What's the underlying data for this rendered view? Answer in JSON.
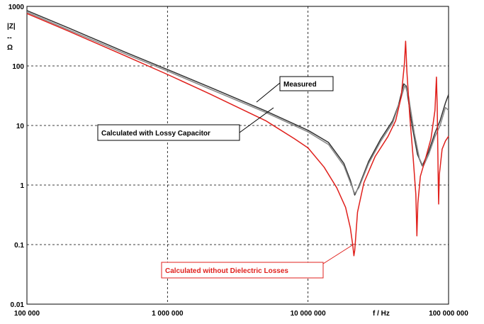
{
  "chart_data": {
    "type": "line",
    "title": "",
    "xscale": "log",
    "yscale": "log",
    "xlim": [
      100000,
      100000000
    ],
    "ylim": [
      0.01,
      1000
    ],
    "x_ticks": [
      {
        "value": 100000,
        "label": "100 000"
      },
      {
        "value": 1000000,
        "label": "1 000 000"
      },
      {
        "value": 10000000,
        "label": "10 000 000"
      },
      {
        "value": 100000000,
        "label": "100 000 000"
      }
    ],
    "y_ticks": [
      {
        "value": 1000,
        "label": "1000"
      },
      {
        "value": 100,
        "label": "100"
      },
      {
        "value": 10,
        "label": "10"
      },
      {
        "value": 1,
        "label": "1"
      },
      {
        "value": 0.1,
        "label": "0.1"
      },
      {
        "value": 0.01,
        "label": "0.01"
      }
    ],
    "xlabel": "f / Hz",
    "ylabel_top": "|Z|",
    "ylabel_sep": "--",
    "ylabel_bottom": "Ω",
    "grid": true,
    "series": [
      {
        "name": "Measured",
        "color": "#333333",
        "points": [
          [
            100000,
            850
          ],
          [
            200000,
            430
          ],
          [
            500000,
            170
          ],
          [
            1000000,
            87
          ],
          [
            2000000,
            44
          ],
          [
            5000000,
            17.5
          ],
          [
            10000000,
            8.3
          ],
          [
            14000000,
            5.2
          ],
          [
            18000000,
            2.3
          ],
          [
            20000000,
            1.2
          ],
          [
            21500000,
            0.68
          ],
          [
            23000000,
            0.95
          ],
          [
            27000000,
            2.5
          ],
          [
            33000000,
            6
          ],
          [
            40000000,
            12
          ],
          [
            44000000,
            22
          ],
          [
            48000000,
            50
          ],
          [
            50000000,
            46
          ],
          [
            55000000,
            10
          ],
          [
            60000000,
            3.3
          ],
          [
            65000000,
            2.1
          ],
          [
            72000000,
            3.6
          ],
          [
            80000000,
            7.5
          ],
          [
            87000000,
            12
          ],
          [
            95000000,
            24
          ],
          [
            100000000,
            33
          ]
        ]
      },
      {
        "name": "Calculated with Lossy Capacitor",
        "color": "#888888",
        "points": [
          [
            100000,
            800
          ],
          [
            200000,
            400
          ],
          [
            500000,
            160
          ],
          [
            1000000,
            82
          ],
          [
            2000000,
            41
          ],
          [
            5000000,
            16.5
          ],
          [
            10000000,
            7.8
          ],
          [
            14000000,
            4.8
          ],
          [
            18000000,
            2.1
          ],
          [
            20000000,
            1.1
          ],
          [
            21500000,
            0.72
          ],
          [
            23000000,
            0.9
          ],
          [
            27000000,
            2.3
          ],
          [
            33000000,
            5.5
          ],
          [
            40000000,
            11
          ],
          [
            45000000,
            25
          ],
          [
            49000000,
            48
          ],
          [
            52000000,
            30
          ],
          [
            57000000,
            7.5
          ],
          [
            62000000,
            2.8
          ],
          [
            66000000,
            2.05
          ],
          [
            72000000,
            3.2
          ],
          [
            80000000,
            6.5
          ],
          [
            87000000,
            10
          ],
          [
            95000000,
            20
          ],
          [
            100000000,
            18
          ]
        ]
      },
      {
        "name": "Calculated without Dielectric Losses",
        "color": "#e0201c",
        "points": [
          [
            100000,
            760
          ],
          [
            200000,
            380
          ],
          [
            500000,
            148
          ],
          [
            1000000,
            72
          ],
          [
            2000000,
            34
          ],
          [
            5000000,
            12
          ],
          [
            8000000,
            6
          ],
          [
            10000000,
            4.2
          ],
          [
            13000000,
            2
          ],
          [
            16000000,
            0.9
          ],
          [
            18500000,
            0.42
          ],
          [
            20000000,
            0.19
          ],
          [
            20800000,
            0.1
          ],
          [
            21200000,
            0.065
          ],
          [
            21500000,
            0.08
          ],
          [
            22500000,
            0.35
          ],
          [
            25000000,
            1.1
          ],
          [
            30000000,
            3
          ],
          [
            37000000,
            6.5
          ],
          [
            42000000,
            12
          ],
          [
            46000000,
            30
          ],
          [
            48500000,
            110
          ],
          [
            49500000,
            260
          ],
          [
            50500000,
            80
          ],
          [
            53000000,
            14
          ],
          [
            56000000,
            2.8
          ],
          [
            58500000,
            0.7
          ],
          [
            59500000,
            0.14
          ],
          [
            60500000,
            0.5
          ],
          [
            63000000,
            1.4
          ],
          [
            68000000,
            2.6
          ],
          [
            75000000,
            6
          ],
          [
            80000000,
            18
          ],
          [
            82000000,
            65
          ],
          [
            83000000,
            20
          ],
          [
            84500000,
            1
          ],
          [
            85000000,
            0.48
          ],
          [
            86000000,
            1.5
          ],
          [
            90000000,
            4
          ],
          [
            95000000,
            5.5
          ],
          [
            100000000,
            6.6
          ]
        ]
      }
    ],
    "annotations": [
      {
        "text": "Measured",
        "color": "#000000",
        "target_series": 0
      },
      {
        "text": "Calculated with Lossy Capacitor",
        "color": "#000000",
        "target_series": 1
      },
      {
        "text": "Calculated without Dielectric Losses",
        "color": "#e0201c",
        "target_series": 2
      }
    ]
  }
}
